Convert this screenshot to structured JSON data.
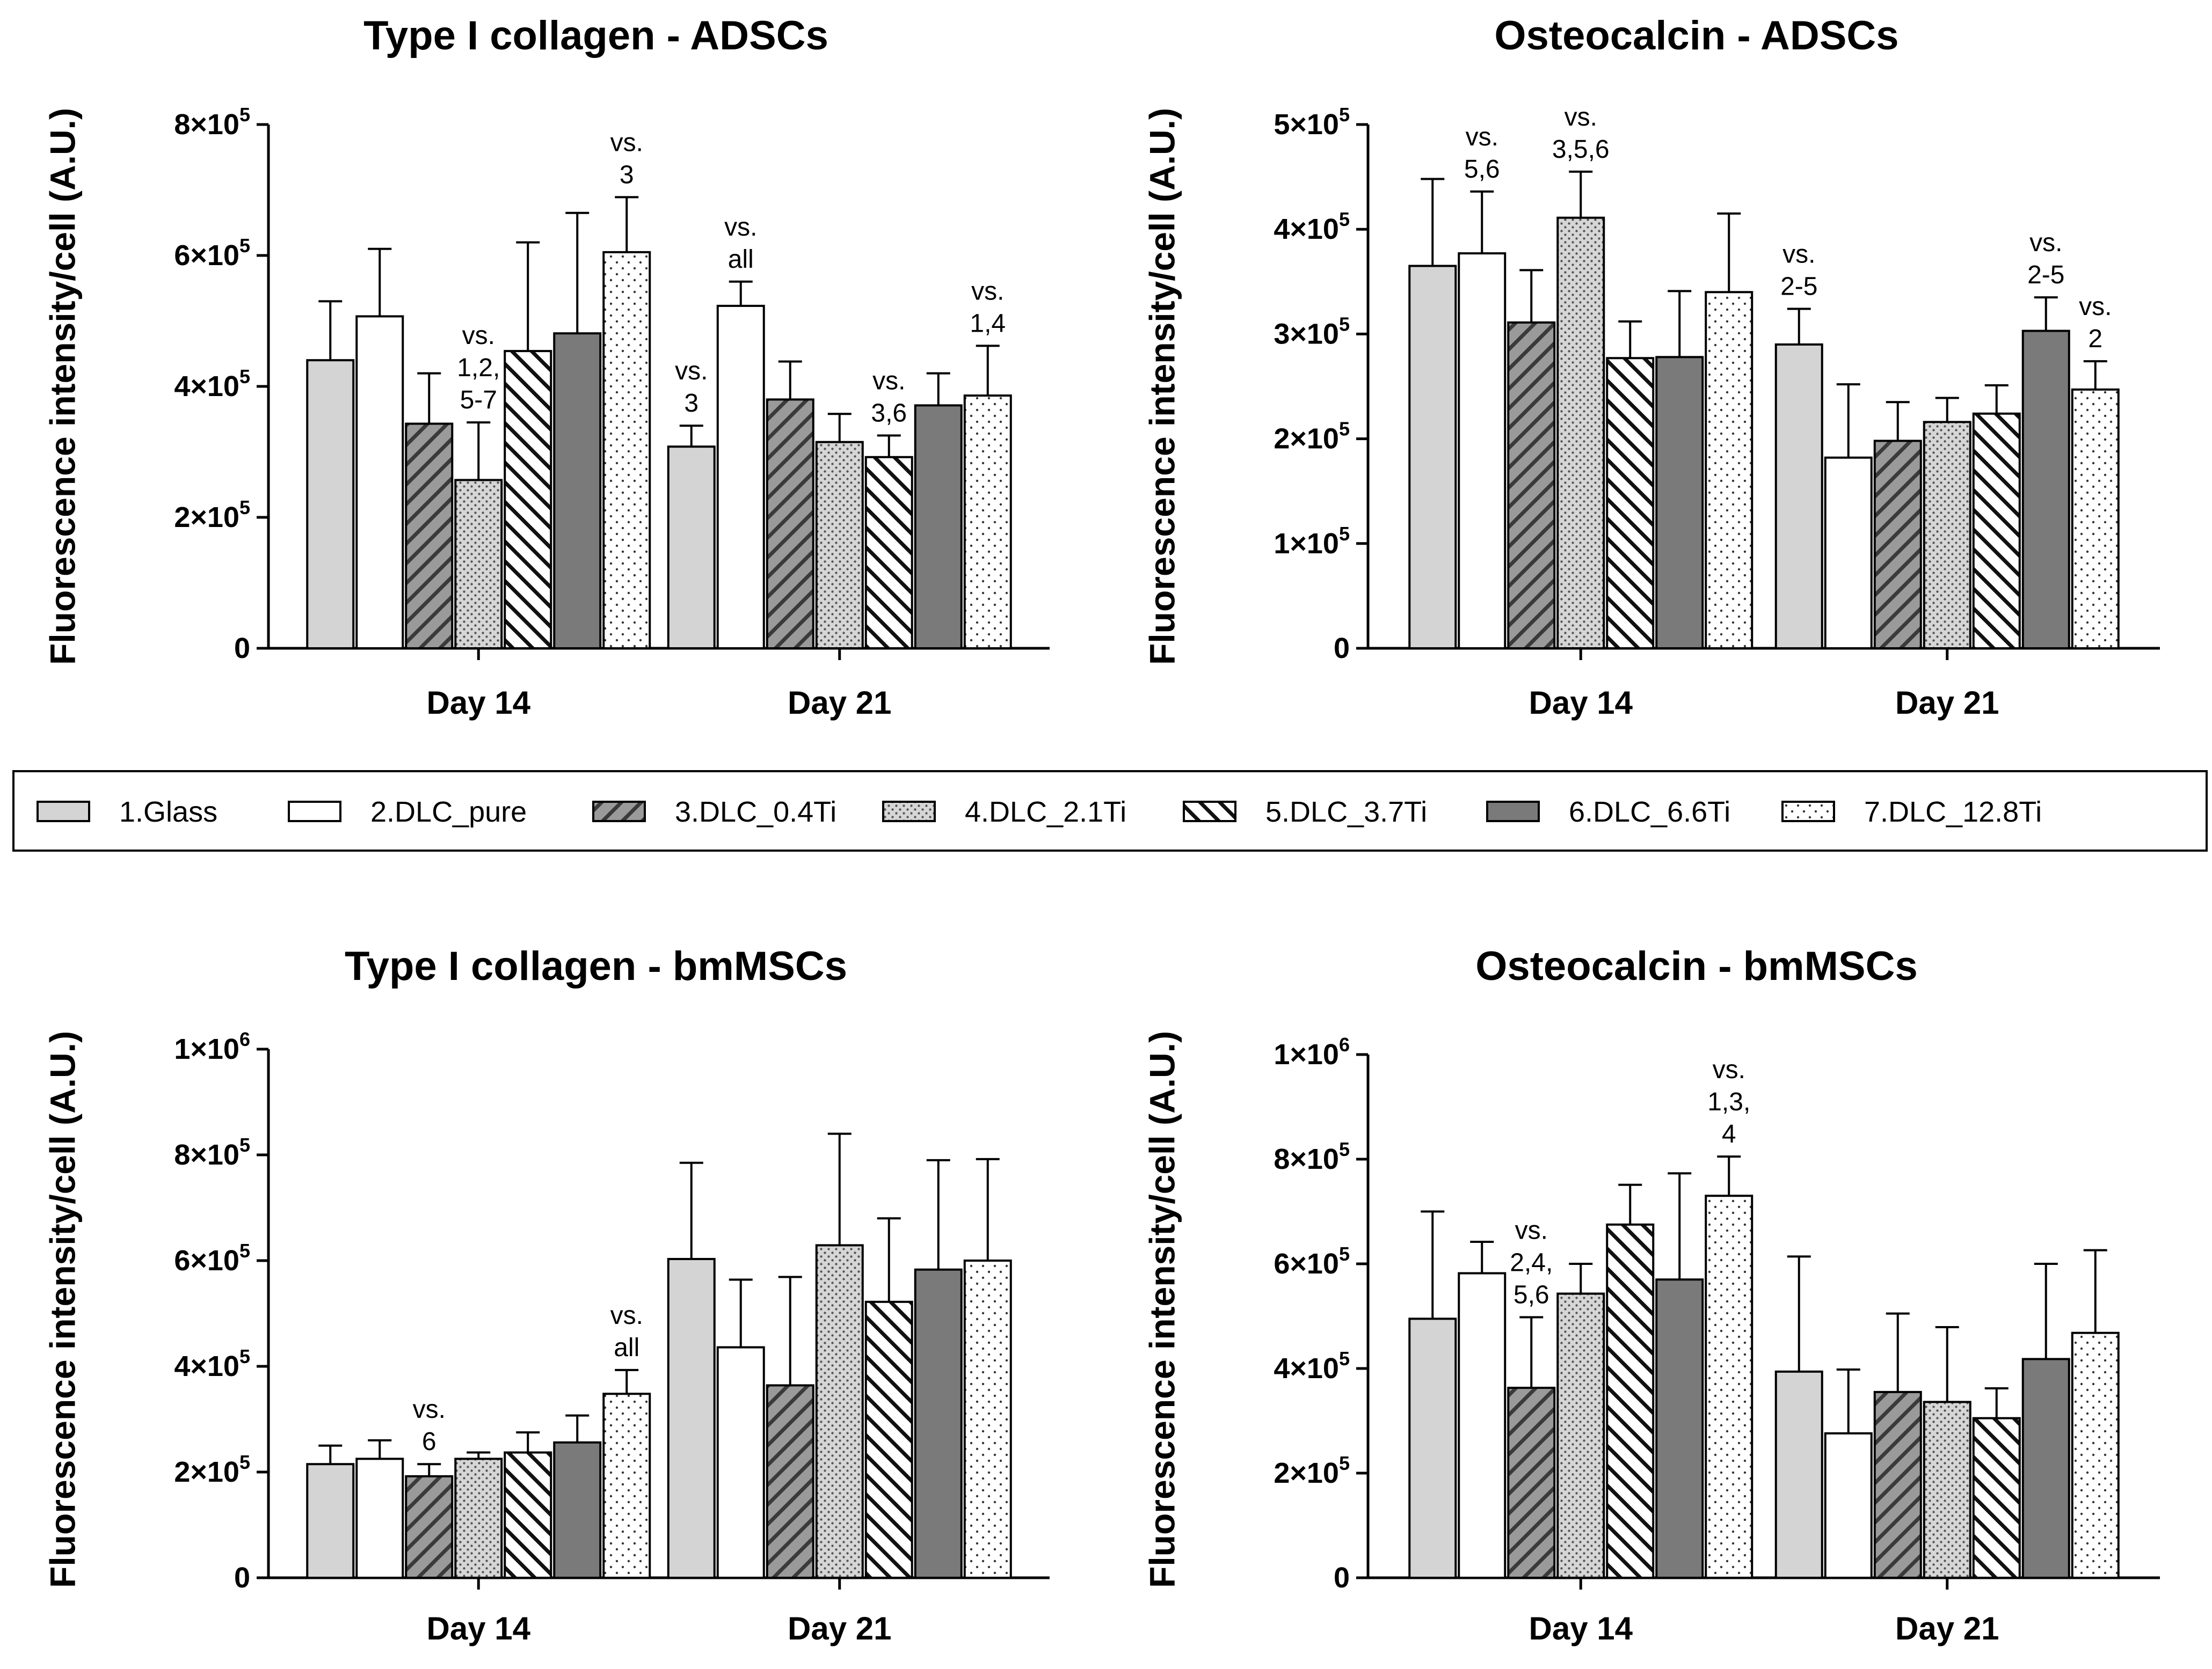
{
  "legend": {
    "entries": [
      {
        "label": "1.Glass",
        "fill": "solid-light"
      },
      {
        "label": "2.DLC_pure",
        "fill": "white"
      },
      {
        "label": "3.DLC_0.4Ti",
        "fill": "hatch-forward"
      },
      {
        "label": "4.DLC_2.1Ti",
        "fill": "dots-dense"
      },
      {
        "label": "5.DLC_3.7Ti",
        "fill": "hatch-backward"
      },
      {
        "label": "6.DLC_6.6Ti",
        "fill": "solid-dark"
      },
      {
        "label": "7.DLC_12.8Ti",
        "fill": "dots-sparse"
      }
    ],
    "placement": "center, between top and bottom rows"
  },
  "colors": {
    "light_gray": "#d4d4d4",
    "dark_gray": "#7a7a7a",
    "hatch_gray": "#9a9a9a",
    "axis": "#000000"
  },
  "chart_data": [
    {
      "type": "bar",
      "title": "Type I collagen - ADSCs",
      "ylabel": "Fluorescence intensity/cell (A.U.)",
      "categories": [
        "Day 14",
        "Day 21"
      ],
      "ylim": [
        0,
        800000
      ],
      "yticks": [
        {
          "value": 0,
          "base": "0",
          "exp": ""
        },
        {
          "value": 200000,
          "base": "2×10",
          "exp": "5"
        },
        {
          "value": 400000,
          "base": "4×10",
          "exp": "5"
        },
        {
          "value": 600000,
          "base": "6×10",
          "exp": "5"
        },
        {
          "value": 800000,
          "base": "8×10",
          "exp": "5"
        }
      ],
      "grid": false,
      "series": [
        {
          "name": "1.Glass",
          "values": [
            440000,
            308000
          ],
          "errors": [
            90000,
            32000
          ]
        },
        {
          "name": "2.DLC_pure",
          "values": [
            507000,
            523000
          ],
          "errors": [
            103000,
            37000
          ]
        },
        {
          "name": "3.DLC_0.4Ti",
          "values": [
            343000,
            380000
          ],
          "errors": [
            77000,
            58000
          ]
        },
        {
          "name": "4.DLC_2.1Ti",
          "values": [
            257000,
            315000
          ],
          "errors": [
            88000,
            43000
          ]
        },
        {
          "name": "5.DLC_3.7Ti",
          "values": [
            454000,
            292000
          ],
          "errors": [
            166000,
            33000
          ]
        },
        {
          "name": "6.DLC_6.6Ti",
          "values": [
            481000,
            371000
          ],
          "errors": [
            184000,
            49000
          ]
        },
        {
          "name": "7.DLC_12.8Ti",
          "values": [
            605000,
            386000
          ],
          "errors": [
            84000,
            76000
          ]
        }
      ],
      "annotations": [
        {
          "group": 0,
          "series": 3,
          "lines": [
            "vs.",
            "1,2,",
            "5-7"
          ]
        },
        {
          "group": 0,
          "series": 6,
          "lines": [
            "vs.",
            "3"
          ]
        },
        {
          "group": 1,
          "series": 0,
          "lines": [
            "vs.",
            "3"
          ]
        },
        {
          "group": 1,
          "series": 1,
          "lines": [
            "vs.",
            "all"
          ]
        },
        {
          "group": 1,
          "series": 4,
          "lines": [
            "vs.",
            "3,6"
          ]
        },
        {
          "group": 1,
          "series": 6,
          "lines": [
            "vs.",
            "1,4"
          ]
        }
      ]
    },
    {
      "type": "bar",
      "title": "Osteocalcin - ADSCs",
      "ylabel": "Fluorescence intensity/cell (A.U.)",
      "categories": [
        "Day 14",
        "Day 21"
      ],
      "ylim": [
        0,
        500000
      ],
      "yticks": [
        {
          "value": 0,
          "base": "0",
          "exp": ""
        },
        {
          "value": 100000,
          "base": "1×10",
          "exp": "5"
        },
        {
          "value": 200000,
          "base": "2×10",
          "exp": "5"
        },
        {
          "value": 300000,
          "base": "3×10",
          "exp": "5"
        },
        {
          "value": 400000,
          "base": "4×10",
          "exp": "5"
        },
        {
          "value": 500000,
          "base": "5×10",
          "exp": "5"
        }
      ],
      "grid": false,
      "series": [
        {
          "name": "1.Glass",
          "values": [
            365000,
            290000
          ],
          "errors": [
            83000,
            34000
          ]
        },
        {
          "name": "2.DLC_pure",
          "values": [
            377000,
            182000
          ],
          "errors": [
            59000,
            70000
          ]
        },
        {
          "name": "3.DLC_0.4Ti",
          "values": [
            311000,
            198000
          ],
          "errors": [
            50000,
            37000
          ]
        },
        {
          "name": "4.DLC_2.1Ti",
          "values": [
            411000,
            216000
          ],
          "errors": [
            44000,
            23000
          ]
        },
        {
          "name": "5.DLC_3.7Ti",
          "values": [
            277000,
            224000
          ],
          "errors": [
            35000,
            27000
          ]
        },
        {
          "name": "6.DLC_6.6Ti",
          "values": [
            278000,
            303000
          ],
          "errors": [
            63000,
            32000
          ]
        },
        {
          "name": "7.DLC_12.8Ti",
          "values": [
            340000,
            247000
          ],
          "errors": [
            75000,
            27000
          ]
        }
      ],
      "annotations": [
        {
          "group": 0,
          "series": 1,
          "lines": [
            "vs.",
            "5,6"
          ]
        },
        {
          "group": 0,
          "series": 3,
          "lines": [
            "vs.",
            "3,5,6"
          ]
        },
        {
          "group": 1,
          "series": 0,
          "lines": [
            "vs.",
            "2-5"
          ]
        },
        {
          "group": 1,
          "series": 5,
          "lines": [
            "vs.",
            "2-5"
          ]
        },
        {
          "group": 1,
          "series": 6,
          "lines": [
            "vs.",
            "2"
          ]
        }
      ]
    },
    {
      "type": "bar",
      "title": "Type I collagen - bmMSCs",
      "ylabel": "Fluorescence intensity/cell (A.U.)",
      "categories": [
        "Day 14",
        "Day 21"
      ],
      "ylim": [
        0,
        1000000
      ],
      "yticks": [
        {
          "value": 0,
          "base": "0",
          "exp": ""
        },
        {
          "value": 200000,
          "base": "2×10",
          "exp": "5"
        },
        {
          "value": 400000,
          "base": "4×10",
          "exp": "5"
        },
        {
          "value": 600000,
          "base": "6×10",
          "exp": "5"
        },
        {
          "value": 800000,
          "base": "8×10",
          "exp": "5"
        },
        {
          "value": 1000000,
          "base": "1×10",
          "exp": "6"
        }
      ],
      "grid": false,
      "series": [
        {
          "name": "1.Glass",
          "values": [
            215000,
            603000
          ],
          "errors": [
            35000,
            182000
          ]
        },
        {
          "name": "2.DLC_pure",
          "values": [
            225000,
            436000
          ],
          "errors": [
            35000,
            128000
          ]
        },
        {
          "name": "3.DLC_0.4Ti",
          "values": [
            192000,
            364000
          ],
          "errors": [
            23000,
            205000
          ]
        },
        {
          "name": "4.DLC_2.1Ti",
          "values": [
            225000,
            629000
          ],
          "errors": [
            12000,
            211000
          ]
        },
        {
          "name": "5.DLC_3.7Ti",
          "values": [
            237000,
            522000
          ],
          "errors": [
            38000,
            158000
          ]
        },
        {
          "name": "6.DLC_6.6Ti",
          "values": [
            256000,
            583000
          ],
          "errors": [
            51000,
            207000
          ]
        },
        {
          "name": "7.DLC_12.8Ti",
          "values": [
            348000,
            600000
          ],
          "errors": [
            45000,
            192000
          ]
        }
      ],
      "annotations": [
        {
          "group": 0,
          "series": 2,
          "lines": [
            "vs.",
            "6"
          ]
        },
        {
          "group": 0,
          "series": 6,
          "lines": [
            "vs.",
            "all"
          ]
        }
      ]
    },
    {
      "type": "bar",
      "title": "Osteocalcin - bmMSCs",
      "ylabel": "Fluorescence intensity/cell (A.U.)",
      "categories": [
        "Day 14",
        "Day 21"
      ],
      "ylim": [
        0,
        1000000
      ],
      "yticks": [
        {
          "value": 0,
          "base": "0",
          "exp": ""
        },
        {
          "value": 200000,
          "base": "2×10",
          "exp": "5"
        },
        {
          "value": 400000,
          "base": "4×10",
          "exp": "5"
        },
        {
          "value": 600000,
          "base": "6×10",
          "exp": "5"
        },
        {
          "value": 800000,
          "base": "8×10",
          "exp": "5"
        },
        {
          "value": 1000000,
          "base": "1×10",
          "exp": "6"
        }
      ],
      "grid": false,
      "series": [
        {
          "name": "1.Glass",
          "values": [
            495000,
            394000
          ],
          "errors": [
            205000,
            220000
          ]
        },
        {
          "name": "2.DLC_pure",
          "values": [
            582000,
            276000
          ],
          "errors": [
            60000,
            122000
          ]
        },
        {
          "name": "3.DLC_0.4Ti",
          "values": [
            363000,
            355000
          ],
          "errors": [
            135000,
            150000
          ]
        },
        {
          "name": "4.DLC_2.1Ti",
          "values": [
            543000,
            336000
          ],
          "errors": [
            57000,
            143000
          ]
        },
        {
          "name": "5.DLC_3.7Ti",
          "values": [
            675000,
            305000
          ],
          "errors": [
            76000,
            57000
          ]
        },
        {
          "name": "6.DLC_6.6Ti",
          "values": [
            570000,
            418000
          ],
          "errors": [
            203000,
            182000
          ]
        },
        {
          "name": "7.DLC_12.8Ti",
          "values": [
            730000,
            468000
          ],
          "errors": [
            75000,
            158000
          ]
        }
      ],
      "annotations": [
        {
          "group": 0,
          "series": 2,
          "lines": [
            "vs.",
            "2,4,",
            "5,6"
          ]
        },
        {
          "group": 0,
          "series": 6,
          "lines": [
            "vs.",
            "1,3,",
            "4"
          ]
        }
      ]
    }
  ]
}
